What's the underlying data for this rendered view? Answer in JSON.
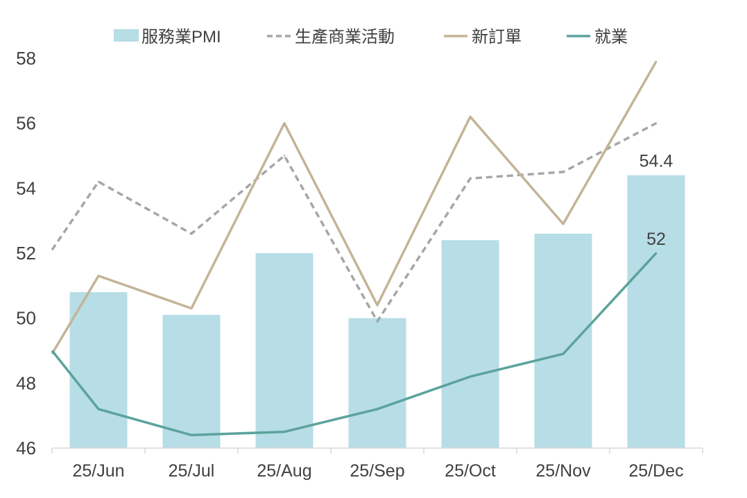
{
  "chart_data": {
    "type": "bar",
    "categories": [
      "25/Jun",
      "25/Jul",
      "25/Aug",
      "25/Sep",
      "25/Oct",
      "25/Nov",
      "25/Dec"
    ],
    "ylim": [
      46,
      58
    ],
    "yticks": [
      46,
      48,
      50,
      52,
      54,
      56,
      58
    ],
    "grid": false,
    "legend_position": "top",
    "series": [
      {
        "name": "服務業PMI",
        "type": "bar",
        "color": "#b7dde6",
        "values": [
          50.8,
          50.1,
          52.0,
          50.0,
          52.4,
          52.6,
          54.4
        ]
      },
      {
        "name": "生產商業活動",
        "type": "line",
        "style": "dashed",
        "color": "#a6a6a6",
        "start": 52.1,
        "values": [
          54.2,
          52.6,
          55.0,
          49.9,
          54.3,
          54.5,
          56.0
        ]
      },
      {
        "name": "新訂單",
        "type": "line",
        "style": "solid",
        "color": "#c4b497",
        "start": 48.9,
        "values": [
          51.3,
          50.3,
          56.0,
          50.4,
          56.2,
          52.9,
          57.9
        ]
      },
      {
        "name": "就業",
        "type": "line",
        "style": "solid",
        "color": "#5ba39b",
        "start": 49.0,
        "values": [
          47.2,
          46.4,
          46.5,
          47.2,
          48.2,
          48.9,
          52.0
        ]
      }
    ],
    "annotations": [
      {
        "series": "服務業PMI",
        "category": "25/Dec",
        "text": "54.4"
      },
      {
        "series": "就業",
        "category": "25/Dec",
        "text": "52"
      }
    ]
  }
}
